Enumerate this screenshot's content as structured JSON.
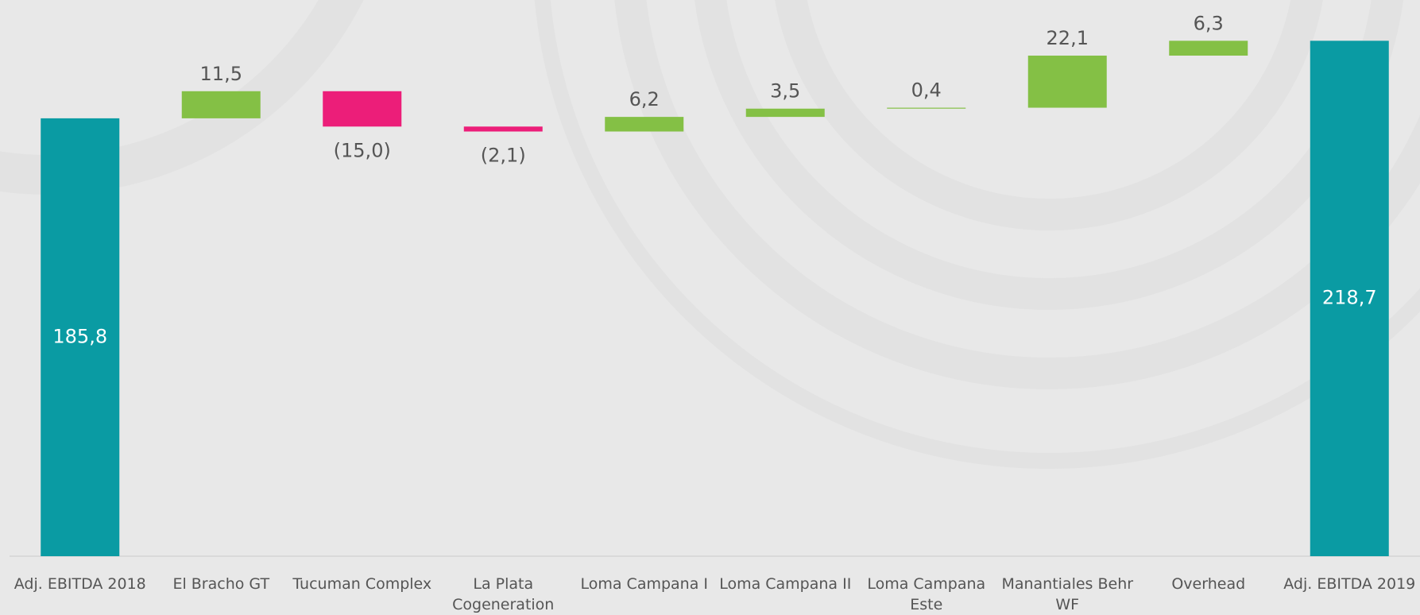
{
  "chart_data": {
    "type": "waterfall",
    "categories": [
      "Adj. EBITDA 2018",
      "El Bracho GT",
      "Tucuman Complex",
      "La Plata Cogeneration",
      "Loma Campana I",
      "Loma Campana II",
      "Loma Campana Este",
      "Manantiales Behr WF",
      "Overhead",
      "Adj. EBITDA 2019"
    ],
    "values": [
      185.8,
      11.5,
      -15.0,
      -2.1,
      6.2,
      3.5,
      0.4,
      22.1,
      6.3,
      218.7
    ],
    "value_labels": [
      "185,8",
      "11,5",
      "(15,0)",
      "(2,1)",
      "6,2",
      "3,5",
      "0,4",
      "22,1",
      "6,3",
      "218,7"
    ],
    "measure": [
      "absolute",
      "relative",
      "relative",
      "relative",
      "relative",
      "relative",
      "relative",
      "relative",
      "relative",
      "absolute"
    ],
    "colors": {
      "total": "#0a9ba3",
      "increase": "#84c045",
      "decrease": "#ec1e79"
    },
    "ylim": [
      0,
      236
    ]
  }
}
